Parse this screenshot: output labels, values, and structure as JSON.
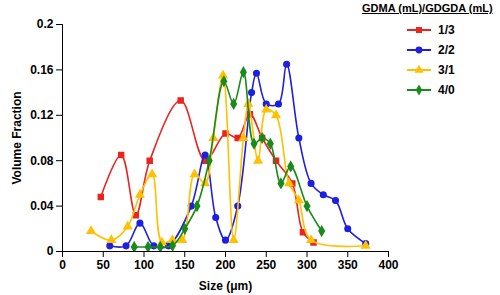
{
  "chart_data": {
    "type": "line",
    "x_label": "Size (μm)",
    "y_label": "Volume Fraction",
    "legend_title": "GDMA (mL)/GDGDA (mL)",
    "legend": "top-right",
    "xlim": [
      0,
      400
    ],
    "xticks": [
      0,
      50,
      100,
      150,
      200,
      250,
      300,
      350,
      400
    ],
    "ylim": [
      0,
      0.2
    ],
    "yticks": [
      0,
      0.04,
      0.08,
      0.12,
      0.16,
      0.2
    ],
    "grid": false,
    "series": [
      {
        "name": "1/3",
        "color": "#e8251f",
        "marker": "square",
        "x": [
          47,
          72,
          90,
          107,
          145,
          175,
          200,
          215,
          230,
          245,
          262,
          282,
          295,
          308
        ],
        "values": [
          0.048,
          0.085,
          0.032,
          0.08,
          0.133,
          0.08,
          0.104,
          0.1,
          0.121,
          0.1,
          0.08,
          0.06,
          0.017,
          0.008
        ]
      },
      {
        "name": "2/2",
        "color": "#1f1fe0",
        "marker": "circle",
        "x": [
          58,
          78,
          95,
          112,
          130,
          158,
          175,
          188,
          200,
          215,
          232,
          238,
          250,
          265,
          275,
          290,
          305,
          320,
          335,
          350,
          372
        ],
        "values": [
          0.005,
          0.005,
          0.025,
          0.005,
          0.005,
          0.04,
          0.085,
          0.03,
          0.01,
          0.04,
          0.14,
          0.157,
          0.13,
          0.13,
          0.165,
          0.1,
          0.06,
          0.05,
          0.045,
          0.02,
          0.007
        ]
      },
      {
        "name": "3/1",
        "color": "#ffc000",
        "marker": "triangle",
        "x": [
          35,
          60,
          80,
          95,
          110,
          122,
          135,
          147,
          162,
          175,
          185,
          197,
          210,
          222,
          228,
          240,
          250,
          262,
          278,
          290,
          305,
          372
        ],
        "values": [
          0.018,
          0.01,
          0.022,
          0.05,
          0.068,
          0.008,
          0.01,
          0.01,
          0.068,
          0.06,
          0.1,
          0.155,
          0.01,
          0.1,
          0.13,
          0.08,
          0.125,
          0.12,
          0.06,
          0.045,
          0.01,
          0.005
        ]
      },
      {
        "name": "4/0",
        "color": "#1a8a1a",
        "marker": "diamond",
        "x": [
          88,
          105,
          120,
          135,
          150,
          165,
          180,
          198,
          210,
          222,
          235,
          245,
          255,
          268,
          280,
          300,
          318
        ],
        "values": [
          0.004,
          0.004,
          0.004,
          0.005,
          0.02,
          0.04,
          0.08,
          0.15,
          0.13,
          0.158,
          0.095,
          0.1,
          0.095,
          0.06,
          0.075,
          0.04,
          0.018
        ]
      }
    ]
  }
}
